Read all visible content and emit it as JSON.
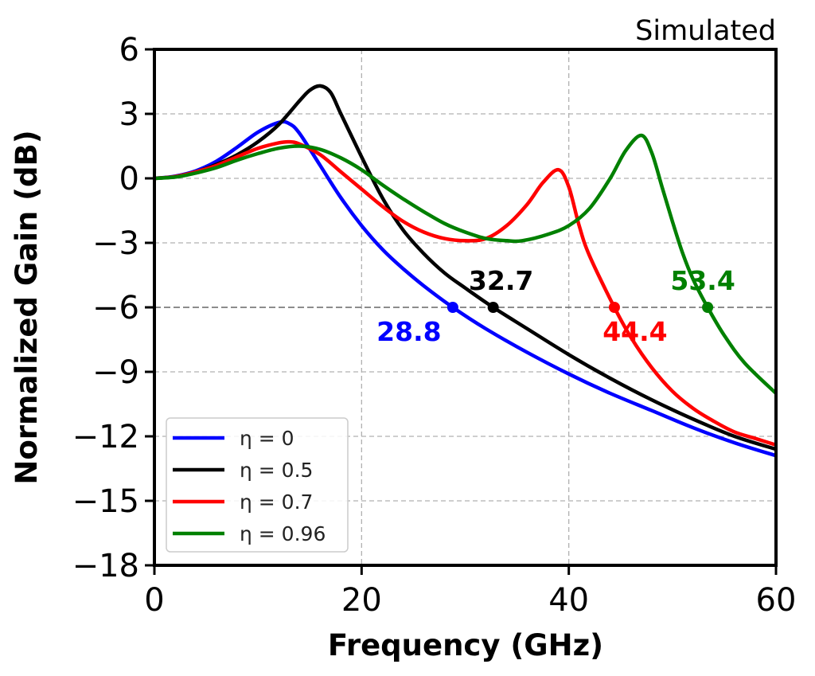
{
  "chart_data": {
    "type": "line",
    "title": "Simulated",
    "xlabel": "Frequency (GHz)",
    "ylabel": "Normalized Gain (dB)",
    "xlim": [
      0,
      60
    ],
    "ylim": [
      -18,
      6
    ],
    "xticks": [
      0,
      20,
      40,
      60
    ],
    "xtick_labels": [
      "0",
      "20",
      "40",
      "60"
    ],
    "yticks": [
      6,
      3,
      0,
      -3,
      -6,
      -9,
      -12,
      -15,
      -18
    ],
    "ytick_labels": [
      "6",
      "3",
      "0",
      "−3",
      "−6",
      "−9",
      "−12",
      "−15",
      "−18"
    ],
    "grid": true,
    "reference_line_y": -6,
    "legend_position": "lower-left",
    "series": [
      {
        "name": "η = 0",
        "color": "#0000ff",
        "x": [
          0,
          2,
          4,
          6,
          8,
          10,
          12,
          13,
          14,
          16,
          18,
          20,
          22,
          24,
          26,
          28.8,
          32,
          36,
          40,
          44,
          48,
          52,
          56,
          60
        ],
        "y": [
          0,
          0.1,
          0.35,
          0.8,
          1.45,
          2.15,
          2.6,
          2.55,
          2.1,
          0.6,
          -0.9,
          -2.2,
          -3.3,
          -4.2,
          -5.0,
          -6.0,
          -7.0,
          -8.1,
          -9.1,
          -10.0,
          -10.8,
          -11.6,
          -12.3,
          -12.9
        ]
      },
      {
        "name": "η = 0.5",
        "color": "#000000",
        "x": [
          0,
          2,
          4,
          6,
          8,
          10,
          12,
          14,
          15,
          16,
          17,
          18,
          20,
          22,
          24,
          26,
          28,
          30,
          32.7,
          36,
          40,
          44,
          48,
          52,
          56,
          60
        ],
        "y": [
          0,
          0.08,
          0.3,
          0.65,
          1.1,
          1.7,
          2.5,
          3.6,
          4.1,
          4.3,
          4.0,
          3.0,
          1.0,
          -0.9,
          -2.4,
          -3.5,
          -4.4,
          -5.1,
          -6.0,
          -7.0,
          -8.2,
          -9.3,
          -10.3,
          -11.2,
          -12.0,
          -12.6
        ]
      },
      {
        "name": "η = 0.7",
        "color": "#ff0000",
        "x": [
          0,
          2,
          4,
          6,
          8,
          10,
          12,
          13,
          14,
          16,
          18,
          20,
          22,
          24,
          26,
          28,
          30,
          32,
          34,
          36,
          37.5,
          39,
          40,
          41,
          42,
          44.4,
          46,
          48,
          50,
          52,
          54,
          56,
          58,
          60
        ],
        "y": [
          0,
          0.08,
          0.3,
          0.6,
          1.0,
          1.4,
          1.65,
          1.7,
          1.6,
          1.1,
          0.3,
          -0.5,
          -1.3,
          -2.0,
          -2.5,
          -2.8,
          -2.9,
          -2.8,
          -2.2,
          -1.2,
          -0.2,
          0.4,
          -0.4,
          -2.2,
          -3.6,
          -6.0,
          -7.4,
          -8.8,
          -9.9,
          -10.7,
          -11.3,
          -11.8,
          -12.1,
          -12.4
        ]
      },
      {
        "name": "η = 0.96",
        "color": "#008000",
        "x": [
          0,
          2,
          4,
          6,
          8,
          10,
          12,
          14,
          16,
          18,
          20,
          22,
          24,
          26,
          28,
          30,
          32,
          34,
          35.5,
          38,
          40,
          42,
          44,
          45.5,
          47,
          48,
          49,
          50,
          51,
          52,
          53.4,
          55,
          57,
          60
        ],
        "y": [
          0,
          0.06,
          0.25,
          0.5,
          0.85,
          1.15,
          1.4,
          1.5,
          1.35,
          0.95,
          0.4,
          -0.3,
          -0.95,
          -1.55,
          -2.1,
          -2.5,
          -2.8,
          -2.9,
          -2.9,
          -2.6,
          -2.2,
          -1.4,
          0.0,
          1.3,
          2.0,
          1.2,
          -0.4,
          -2.0,
          -3.5,
          -4.7,
          -6.0,
          -7.3,
          -8.6,
          -10.0
        ]
      }
    ],
    "annotations": [
      {
        "text": "28.8",
        "x": 28.8,
        "y": -6,
        "color": "#0000ff",
        "position": "below-left"
      },
      {
        "text": "32.7",
        "x": 32.7,
        "y": -6,
        "color": "#000000",
        "position": "above"
      },
      {
        "text": "44.4",
        "x": 44.4,
        "y": -6,
        "color": "#ff0000",
        "position": "below"
      },
      {
        "text": "53.4",
        "x": 53.4,
        "y": -6,
        "color": "#008000",
        "position": "above-left"
      }
    ]
  }
}
